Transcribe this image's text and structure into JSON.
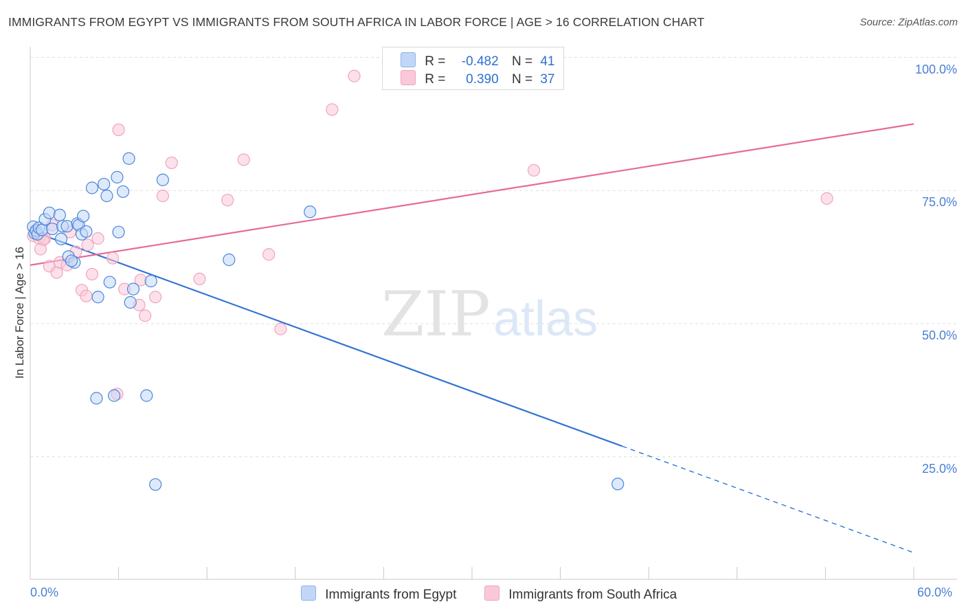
{
  "title": "IMMIGRANTS FROM EGYPT VS IMMIGRANTS FROM SOUTH AFRICA IN LABOR FORCE | AGE > 16 CORRELATION CHART",
  "source": "Source: ZipAtlas.com",
  "watermark": {
    "zip": "ZIP",
    "atlas": "atlas"
  },
  "legend": {
    "r_label": "R =",
    "n_label": "N =",
    "rows": [
      {
        "r": "-0.482",
        "n": "41",
        "color": "#c2d7f7"
      },
      {
        "r": "0.390",
        "n": "37",
        "color": "#f9c9d8"
      }
    ]
  },
  "chart_data": {
    "type": "scatter",
    "title": "IMMIGRANTS FROM EGYPT VS IMMIGRANTS FROM SOUTH AFRICA IN LABOR FORCE | AGE > 16 CORRELATION CHART",
    "xlabel": "",
    "ylabel": "In Labor Force | Age > 16",
    "xlim": [
      0,
      60
    ],
    "ylim": [
      2,
      102
    ],
    "x_tick_labels": [
      "0.0%",
      "60.0%"
    ],
    "y_ticks": [
      25,
      50,
      75,
      100
    ],
    "y_tick_labels": [
      "25.0%",
      "50.0%",
      "75.0%",
      "100.0%"
    ],
    "series": [
      {
        "name": "Immigrants from Egypt",
        "color": "#4a86d8",
        "fill": "#c2d7f7",
        "trend": {
          "x0": 0,
          "y0": 67.5,
          "x1": 40.2,
          "y1": 27.0,
          "dash_to_x": 60,
          "dash_to_y": 7.0,
          "color": "#2f74d4"
        },
        "points": [
          [
            0.2,
            68.2
          ],
          [
            0.3,
            67.0
          ],
          [
            0.4,
            67.5
          ],
          [
            0.5,
            66.8
          ],
          [
            0.6,
            68.0
          ],
          [
            0.8,
            67.6
          ],
          [
            1.0,
            69.6
          ],
          [
            1.3,
            70.8
          ],
          [
            1.5,
            67.8
          ],
          [
            2.0,
            70.4
          ],
          [
            2.2,
            68.3
          ],
          [
            2.1,
            65.9
          ],
          [
            2.5,
            68.3
          ],
          [
            2.6,
            62.6
          ],
          [
            3.0,
            61.5
          ],
          [
            3.2,
            68.8
          ],
          [
            3.3,
            68.5
          ],
          [
            3.6,
            70.2
          ],
          [
            3.5,
            66.8
          ],
          [
            3.8,
            67.3
          ],
          [
            4.2,
            75.5
          ],
          [
            4.6,
            55.0
          ],
          [
            5.0,
            76.2
          ],
          [
            5.2,
            74.0
          ],
          [
            5.4,
            57.8
          ],
          [
            5.9,
            77.5
          ],
          [
            6.0,
            67.2
          ],
          [
            6.3,
            74.8
          ],
          [
            6.7,
            81.0
          ],
          [
            6.8,
            54.0
          ],
          [
            7.0,
            56.5
          ],
          [
            8.2,
            58.0
          ],
          [
            9.0,
            77.0
          ],
          [
            13.5,
            62.0
          ],
          [
            19.0,
            71.0
          ],
          [
            4.5,
            36.0
          ],
          [
            5.7,
            36.5
          ],
          [
            7.9,
            36.5
          ],
          [
            8.5,
            19.8
          ],
          [
            39.9,
            19.9
          ],
          [
            2.8,
            61.8
          ]
        ]
      },
      {
        "name": "Immigrants from South Africa",
        "color": "#f0a3bc",
        "fill": "#f9c9d8",
        "trend": {
          "x0": 0,
          "y0": 61.0,
          "x1": 60,
          "y1": 87.5,
          "color": "#e56a96"
        },
        "points": [
          [
            0.2,
            66.5
          ],
          [
            0.4,
            67.5
          ],
          [
            0.6,
            66.0
          ],
          [
            0.7,
            64.0
          ],
          [
            1.0,
            66.0
          ],
          [
            1.3,
            60.8
          ],
          [
            1.5,
            68.5
          ],
          [
            1.8,
            59.6
          ],
          [
            2.0,
            61.5
          ],
          [
            2.5,
            61.0
          ],
          [
            2.7,
            67.2
          ],
          [
            3.1,
            63.5
          ],
          [
            3.5,
            56.3
          ],
          [
            3.8,
            55.2
          ],
          [
            3.9,
            64.8
          ],
          [
            4.2,
            59.3
          ],
          [
            4.6,
            66.0
          ],
          [
            5.6,
            62.3
          ],
          [
            5.9,
            36.8
          ],
          [
            6.0,
            86.4
          ],
          [
            6.4,
            56.5
          ],
          [
            7.4,
            53.5
          ],
          [
            7.5,
            58.2
          ],
          [
            7.8,
            51.5
          ],
          [
            8.5,
            55.0
          ],
          [
            9.0,
            74.0
          ],
          [
            9.6,
            80.2
          ],
          [
            11.5,
            58.4
          ],
          [
            13.4,
            73.2
          ],
          [
            14.5,
            80.8
          ],
          [
            16.2,
            63.0
          ],
          [
            17.0,
            49.0
          ],
          [
            20.5,
            90.2
          ],
          [
            22.0,
            96.5
          ],
          [
            34.2,
            78.8
          ],
          [
            54.1,
            73.5
          ],
          [
            0.9,
            65.8
          ]
        ]
      }
    ]
  }
}
